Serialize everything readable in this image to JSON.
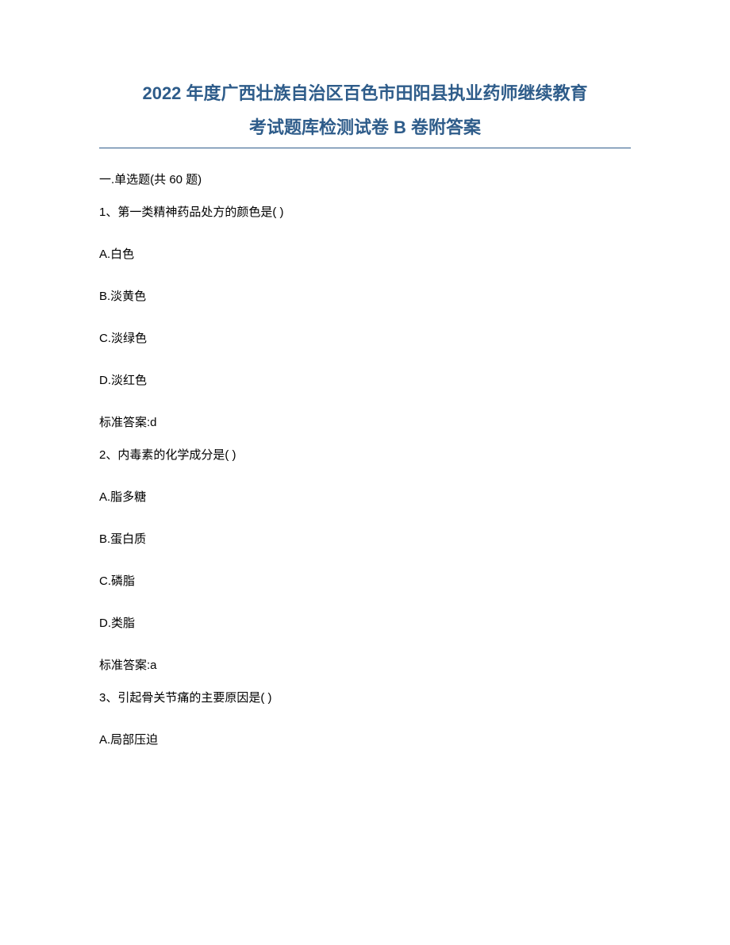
{
  "title_line1": "2022 年度广西壮族自治区百色市田阳县执业药师继续教育",
  "title_line2": "考试题库检测试卷 B 卷附答案",
  "section_header": "一.单选题(共 60 题)",
  "questions": [
    {
      "text": "1、第一类精神药品处方的颜色是( )",
      "options": [
        "A.白色",
        "B.淡黄色",
        "C.淡绿色",
        "D.淡红色"
      ],
      "answer": "标准答案:d"
    },
    {
      "text": "2、内毒素的化学成分是( )",
      "options": [
        "A.脂多糖",
        "B.蛋白质",
        "C.磷脂",
        "D.类脂"
      ],
      "answer": "标准答案:a"
    },
    {
      "text": "3、引起骨关节痛的主要原因是( )",
      "options": [
        "A.局部压迫"
      ],
      "answer": ""
    }
  ],
  "colors": {
    "title_color": "#2e5c8a",
    "text_color": "#000000",
    "background": "#ffffff",
    "underline_color": "#2e5c8a"
  },
  "typography": {
    "title_fontsize": 22,
    "body_fontsize": 15,
    "title_weight": "bold"
  }
}
